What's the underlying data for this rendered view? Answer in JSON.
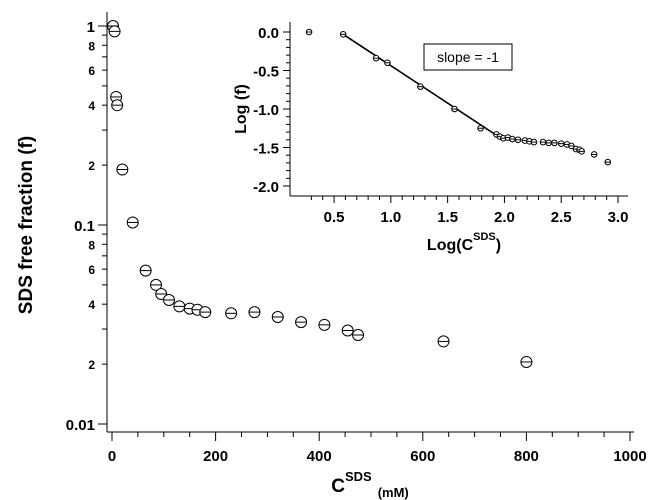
{
  "chart_data": [
    {
      "type": "scatter",
      "title": "",
      "xlabel": {
        "main": "C",
        "sup": "SDS",
        "unit": "(mM)"
      },
      "ylabel": "SDS free fraction (f)",
      "xlim": [
        0,
        1000
      ],
      "ylim": [
        0.01,
        1
      ],
      "log_y": true,
      "grid": false,
      "x_ticks": [
        "0",
        "200",
        "400",
        "600",
        "800",
        "1000"
      ],
      "y_major_ticks": [
        "0.01",
        "0.1",
        "1"
      ],
      "y_minor_labels": [
        "2",
        "4",
        "6",
        "8"
      ],
      "marker": "open circle with horizontal line",
      "series": [
        {
          "x": [
            2,
            5,
            8,
            10,
            20,
            40,
            65,
            85,
            95,
            110,
            130,
            150,
            165,
            180,
            230,
            275,
            320,
            365,
            410,
            455,
            475,
            640,
            800
          ],
          "y": [
            1.0,
            0.94,
            0.44,
            0.4,
            0.19,
            0.103,
            0.059,
            0.05,
            0.045,
            0.042,
            0.039,
            0.038,
            0.0375,
            0.0365,
            0.036,
            0.0365,
            0.0345,
            0.0325,
            0.0315,
            0.0295,
            0.028,
            0.026,
            0.0205
          ]
        }
      ]
    },
    {
      "type": "scatter",
      "title": "",
      "xlabel": {
        "main": "Log(C",
        "sup": "SDS",
        "tail": ")"
      },
      "ylabel": "Log (f)",
      "xlim": [
        0.2,
        3.0
      ],
      "ylim": [
        -2.0,
        0.0
      ],
      "grid": false,
      "x_ticks": [
        "0.5",
        "1.0",
        "1.5",
        "2.0",
        "2.5",
        "3.0"
      ],
      "y_ticks": [
        "0.0",
        "-0.5",
        "-1.0",
        "-1.5",
        "-2.0"
      ],
      "annotation": "slope = -1",
      "series": [
        {
          "x": [
            0.28,
            0.58,
            0.87,
            0.97,
            1.26,
            1.56,
            1.79,
            1.93,
            1.96,
            1.99,
            2.03,
            2.07,
            2.12,
            2.18,
            2.22,
            2.26,
            2.34,
            2.39,
            2.44,
            2.5,
            2.55,
            2.59,
            2.63,
            2.66,
            2.68,
            2.79,
            2.91
          ],
          "y": [
            0.0,
            -0.03,
            -0.34,
            -0.4,
            -0.71,
            -1.0,
            -1.25,
            -1.33,
            -1.36,
            -1.38,
            -1.37,
            -1.39,
            -1.4,
            -1.41,
            -1.42,
            -1.43,
            -1.43,
            -1.44,
            -1.44,
            -1.45,
            -1.46,
            -1.48,
            -1.52,
            -1.53,
            -1.55,
            -1.59,
            -1.69
          ]
        }
      ],
      "fit_line": {
        "x": [
          0.58,
          1.97
        ],
        "y": [
          -0.03,
          -1.38
        ]
      }
    }
  ]
}
